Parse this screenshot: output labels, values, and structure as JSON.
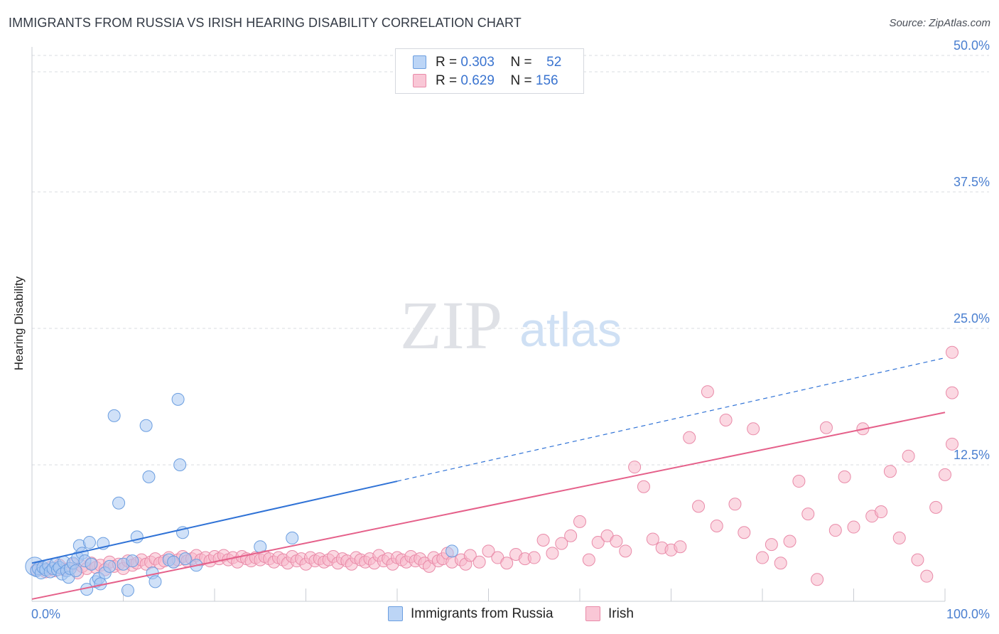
{
  "title": "IMMIGRANTS FROM RUSSIA VS IRISH HEARING DISABILITY CORRELATION CHART",
  "source": "Source: ZipAtlas.com",
  "watermark": {
    "zip": "ZIP",
    "atlas": "atlas"
  },
  "legend": {
    "rows": [
      {
        "r_label": "R =",
        "r_value": "0.303",
        "n_label": "N =",
        "n_value": "52"
      },
      {
        "r_label": "R =",
        "r_value": "0.629",
        "n_label": "N =",
        "n_value": "156"
      }
    ]
  },
  "colors": {
    "russia_fill": "#a9c8f2",
    "russia_stroke": "#6b9ee0",
    "russia_line": "#2f72d6",
    "irish_fill": "#f7b8cb",
    "irish_stroke": "#e98aa8",
    "irish_line": "#e5608a",
    "tick_text": "#4a7fd0",
    "grid": "#d9dce2"
  },
  "chart_data": {
    "type": "scatter",
    "title": "IMMIGRANTS FROM RUSSIA VS IRISH HEARING DISABILITY CORRELATION CHART",
    "xlabel": "",
    "ylabel": "Hearing Disability",
    "xlim": [
      0,
      100
    ],
    "ylim": [
      0,
      50
    ],
    "x_tick_labels": [
      "0.0%",
      "100.0%"
    ],
    "y_ticks": [
      12.5,
      25.0,
      37.5,
      50.0
    ],
    "y_tick_labels": [
      "12.5%",
      "25.0%",
      "37.5%",
      "50.0%"
    ],
    "grid": true,
    "series": [
      {
        "name": "Immigrants from Russia",
        "r": 0.303,
        "n": 52,
        "trend": {
          "x": [
            0,
            40
          ],
          "y": [
            3.5,
            11.0
          ],
          "dashed_to": [
            100,
            22.3
          ]
        },
        "points": [
          [
            0.3,
            3.2
          ],
          [
            0.5,
            2.8
          ],
          [
            0.7,
            3.0
          ],
          [
            1.0,
            2.6
          ],
          [
            1.2,
            3.1
          ],
          [
            1.5,
            2.9
          ],
          [
            1.8,
            3.3
          ],
          [
            2.0,
            2.7
          ],
          [
            2.3,
            3.0
          ],
          [
            2.6,
            3.4
          ],
          [
            2.8,
            2.9
          ],
          [
            3.0,
            3.1
          ],
          [
            3.3,
            2.5
          ],
          [
            3.5,
            3.6
          ],
          [
            3.8,
            2.8
          ],
          [
            4.0,
            2.2
          ],
          [
            4.2,
            3.0
          ],
          [
            4.5,
            3.5
          ],
          [
            4.8,
            2.8
          ],
          [
            5.0,
            4.0
          ],
          [
            5.2,
            5.1
          ],
          [
            5.5,
            4.4
          ],
          [
            5.8,
            3.7
          ],
          [
            6.0,
            1.1
          ],
          [
            6.3,
            5.4
          ],
          [
            6.5,
            3.4
          ],
          [
            7.0,
            1.8
          ],
          [
            7.3,
            2.1
          ],
          [
            7.5,
            1.6
          ],
          [
            7.8,
            5.3
          ],
          [
            8.0,
            2.6
          ],
          [
            8.5,
            3.2
          ],
          [
            9.0,
            17.0
          ],
          [
            9.5,
            9.0
          ],
          [
            10.0,
            3.4
          ],
          [
            10.5,
            1.0
          ],
          [
            11.0,
            3.7
          ],
          [
            11.5,
            5.9
          ],
          [
            12.5,
            16.1
          ],
          [
            12.8,
            11.4
          ],
          [
            13.2,
            2.6
          ],
          [
            13.5,
            1.8
          ],
          [
            15.0,
            3.8
          ],
          [
            15.5,
            3.6
          ],
          [
            16.0,
            18.5
          ],
          [
            16.2,
            12.5
          ],
          [
            16.5,
            6.3
          ],
          [
            16.8,
            3.9
          ],
          [
            18.0,
            3.3
          ],
          [
            25.0,
            5.0
          ],
          [
            28.5,
            5.8
          ],
          [
            46.0,
            4.6
          ]
        ]
      },
      {
        "name": "Irish",
        "r": 0.629,
        "n": 156,
        "trend": {
          "x": [
            0,
            100
          ],
          "y": [
            0.2,
            17.3
          ]
        },
        "points": [
          [
            0.5,
            2.9
          ],
          [
            1.0,
            3.0
          ],
          [
            1.5,
            2.7
          ],
          [
            2.0,
            3.1
          ],
          [
            2.5,
            2.8
          ],
          [
            3.0,
            3.3
          ],
          [
            3.5,
            2.9
          ],
          [
            4.0,
            3.0
          ],
          [
            4.5,
            3.4
          ],
          [
            5.0,
            2.6
          ],
          [
            5.5,
            3.2
          ],
          [
            6.0,
            3.0
          ],
          [
            6.5,
            3.5
          ],
          [
            7.0,
            3.1
          ],
          [
            7.5,
            3.3
          ],
          [
            8.0,
            2.9
          ],
          [
            8.5,
            3.6
          ],
          [
            9.0,
            3.2
          ],
          [
            9.5,
            3.4
          ],
          [
            10.0,
            3.0
          ],
          [
            10.5,
            3.7
          ],
          [
            11.0,
            3.3
          ],
          [
            11.5,
            3.5
          ],
          [
            12.0,
            3.8
          ],
          [
            12.5,
            3.4
          ],
          [
            13.0,
            3.6
          ],
          [
            13.5,
            3.9
          ],
          [
            14.0,
            3.5
          ],
          [
            14.5,
            3.7
          ],
          [
            15.0,
            4.0
          ],
          [
            15.5,
            3.6
          ],
          [
            16.0,
            3.8
          ],
          [
            16.5,
            4.1
          ],
          [
            17.0,
            3.7
          ],
          [
            17.5,
            3.9
          ],
          [
            18.0,
            4.2
          ],
          [
            18.5,
            3.8
          ],
          [
            19.0,
            4.0
          ],
          [
            19.5,
            3.7
          ],
          [
            20.0,
            4.1
          ],
          [
            20.5,
            3.9
          ],
          [
            21.0,
            4.2
          ],
          [
            21.5,
            3.8
          ],
          [
            22.0,
            4.0
          ],
          [
            22.5,
            3.6
          ],
          [
            23.0,
            4.1
          ],
          [
            23.5,
            3.9
          ],
          [
            24.0,
            3.7
          ],
          [
            24.5,
            4.0
          ],
          [
            25.0,
            3.8
          ],
          [
            25.5,
            4.1
          ],
          [
            26.0,
            3.9
          ],
          [
            26.5,
            3.6
          ],
          [
            27.0,
            4.0
          ],
          [
            27.5,
            3.8
          ],
          [
            28.0,
            3.5
          ],
          [
            28.5,
            4.1
          ],
          [
            29.0,
            3.7
          ],
          [
            29.5,
            3.9
          ],
          [
            30.0,
            3.4
          ],
          [
            30.5,
            4.0
          ],
          [
            31.0,
            3.7
          ],
          [
            31.5,
            3.9
          ],
          [
            32.0,
            3.6
          ],
          [
            32.5,
            3.8
          ],
          [
            33.0,
            4.1
          ],
          [
            33.5,
            3.5
          ],
          [
            34.0,
            3.9
          ],
          [
            34.5,
            3.7
          ],
          [
            35.0,
            3.4
          ],
          [
            35.5,
            4.0
          ],
          [
            36.0,
            3.8
          ],
          [
            36.5,
            3.6
          ],
          [
            37.0,
            3.9
          ],
          [
            37.5,
            3.5
          ],
          [
            38.0,
            4.2
          ],
          [
            38.5,
            3.7
          ],
          [
            39.0,
            3.9
          ],
          [
            39.5,
            3.4
          ],
          [
            40.0,
            4.0
          ],
          [
            40.5,
            3.8
          ],
          [
            41.0,
            3.6
          ],
          [
            41.5,
            4.1
          ],
          [
            42.0,
            3.7
          ],
          [
            42.5,
            3.9
          ],
          [
            43.0,
            3.5
          ],
          [
            43.5,
            3.2
          ],
          [
            44.0,
            4.0
          ],
          [
            44.5,
            3.7
          ],
          [
            45.0,
            3.9
          ],
          [
            45.5,
            4.4
          ],
          [
            46.0,
            3.6
          ],
          [
            47.0,
            3.8
          ],
          [
            47.5,
            3.4
          ],
          [
            48.0,
            4.2
          ],
          [
            49.0,
            3.6
          ],
          [
            50.0,
            4.6
          ],
          [
            51.0,
            4.0
          ],
          [
            52.0,
            3.5
          ],
          [
            53.0,
            4.3
          ],
          [
            54.0,
            3.9
          ],
          [
            55.0,
            4.0
          ],
          [
            56.0,
            5.6
          ],
          [
            57.0,
            4.4
          ],
          [
            58.0,
            5.3
          ],
          [
            59.0,
            6.0
          ],
          [
            60.0,
            7.3
          ],
          [
            61.0,
            3.8
          ],
          [
            62.0,
            5.4
          ],
          [
            63.0,
            6.0
          ],
          [
            64.0,
            5.5
          ],
          [
            65.0,
            4.6
          ],
          [
            66.0,
            12.3
          ],
          [
            67.0,
            10.5
          ],
          [
            68.0,
            5.7
          ],
          [
            69.0,
            4.9
          ],
          [
            70.0,
            4.7
          ],
          [
            71.0,
            5.0
          ],
          [
            72.0,
            15.0
          ],
          [
            73.0,
            8.7
          ],
          [
            74.0,
            19.2
          ],
          [
            75.0,
            6.9
          ],
          [
            76.0,
            16.6
          ],
          [
            77.0,
            8.9
          ],
          [
            78.0,
            6.3
          ],
          [
            79.0,
            15.8
          ],
          [
            80.0,
            4.0
          ],
          [
            81.0,
            5.2
          ],
          [
            82.0,
            3.5
          ],
          [
            83.0,
            5.5
          ],
          [
            84.0,
            11.0
          ],
          [
            85.0,
            8.0
          ],
          [
            86.0,
            2.0
          ],
          [
            87.0,
            15.9
          ],
          [
            88.0,
            6.5
          ],
          [
            89.0,
            11.4
          ],
          [
            90.0,
            6.8
          ],
          [
            91.0,
            15.8
          ],
          [
            92.0,
            7.8
          ],
          [
            93.0,
            8.2
          ],
          [
            94.0,
            11.9
          ],
          [
            95.0,
            5.8
          ],
          [
            96.0,
            13.3
          ],
          [
            97.0,
            3.8
          ],
          [
            98.0,
            2.3
          ],
          [
            99.0,
            8.6
          ],
          [
            100.0,
            11.6
          ],
          [
            101.0,
            14.4
          ],
          [
            102.0,
            19.1
          ],
          [
            103.0,
            22.8
          ]
        ]
      }
    ]
  },
  "bottom_legend": [
    {
      "label": "Immigrants from Russia"
    },
    {
      "label": "Irish"
    }
  ]
}
